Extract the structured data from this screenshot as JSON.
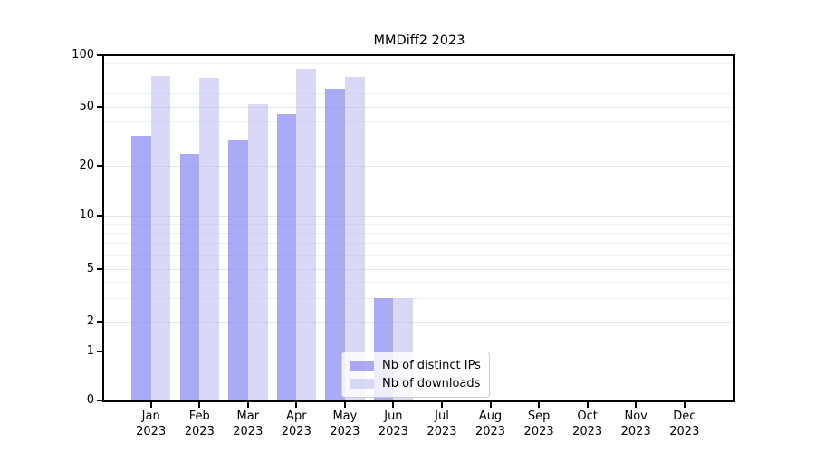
{
  "chart_data": {
    "type": "bar",
    "title": "MMDiff2 2023",
    "categories": [
      "Jan 2023",
      "Feb 2023",
      "Mar 2023",
      "Apr 2023",
      "May 2023",
      "Jun 2023",
      "Jul 2023",
      "Aug 2023",
      "Sep 2023",
      "Oct 2023",
      "Nov 2023",
      "Dec 2023"
    ],
    "series": [
      {
        "name": "Nb of distinct IPs",
        "color": "#8282f2",
        "alpha": 0.68,
        "values": [
          32,
          24,
          30,
          45,
          64,
          3,
          0,
          0,
          0,
          0,
          0,
          0
        ]
      },
      {
        "name": "Nb of downloads",
        "color": "#b4b4f0",
        "alpha": 0.5,
        "values": [
          76,
          74,
          52,
          83,
          75,
          3,
          0,
          0,
          0,
          0,
          0,
          0
        ]
      }
    ],
    "xlabel": "",
    "ylabel": "",
    "yscale": "symlog",
    "ylim": [
      0,
      100
    ],
    "yticks": [
      0,
      1,
      2,
      5,
      10,
      20,
      50,
      100
    ],
    "minor_yticks": [
      3,
      4,
      6,
      7,
      8,
      9,
      30,
      40,
      60,
      70,
      80,
      90
    ],
    "grid": true,
    "legend_position": "lower center"
  },
  "colors": {
    "spine": "#000000",
    "tick_label": "#000000",
    "grid_major": "#e6e6e6",
    "grid_minor": "#f0f0f0",
    "grid_unit_line": "#b3b3b3",
    "legend_border": "#cccccc",
    "background": "#ffffff"
  }
}
